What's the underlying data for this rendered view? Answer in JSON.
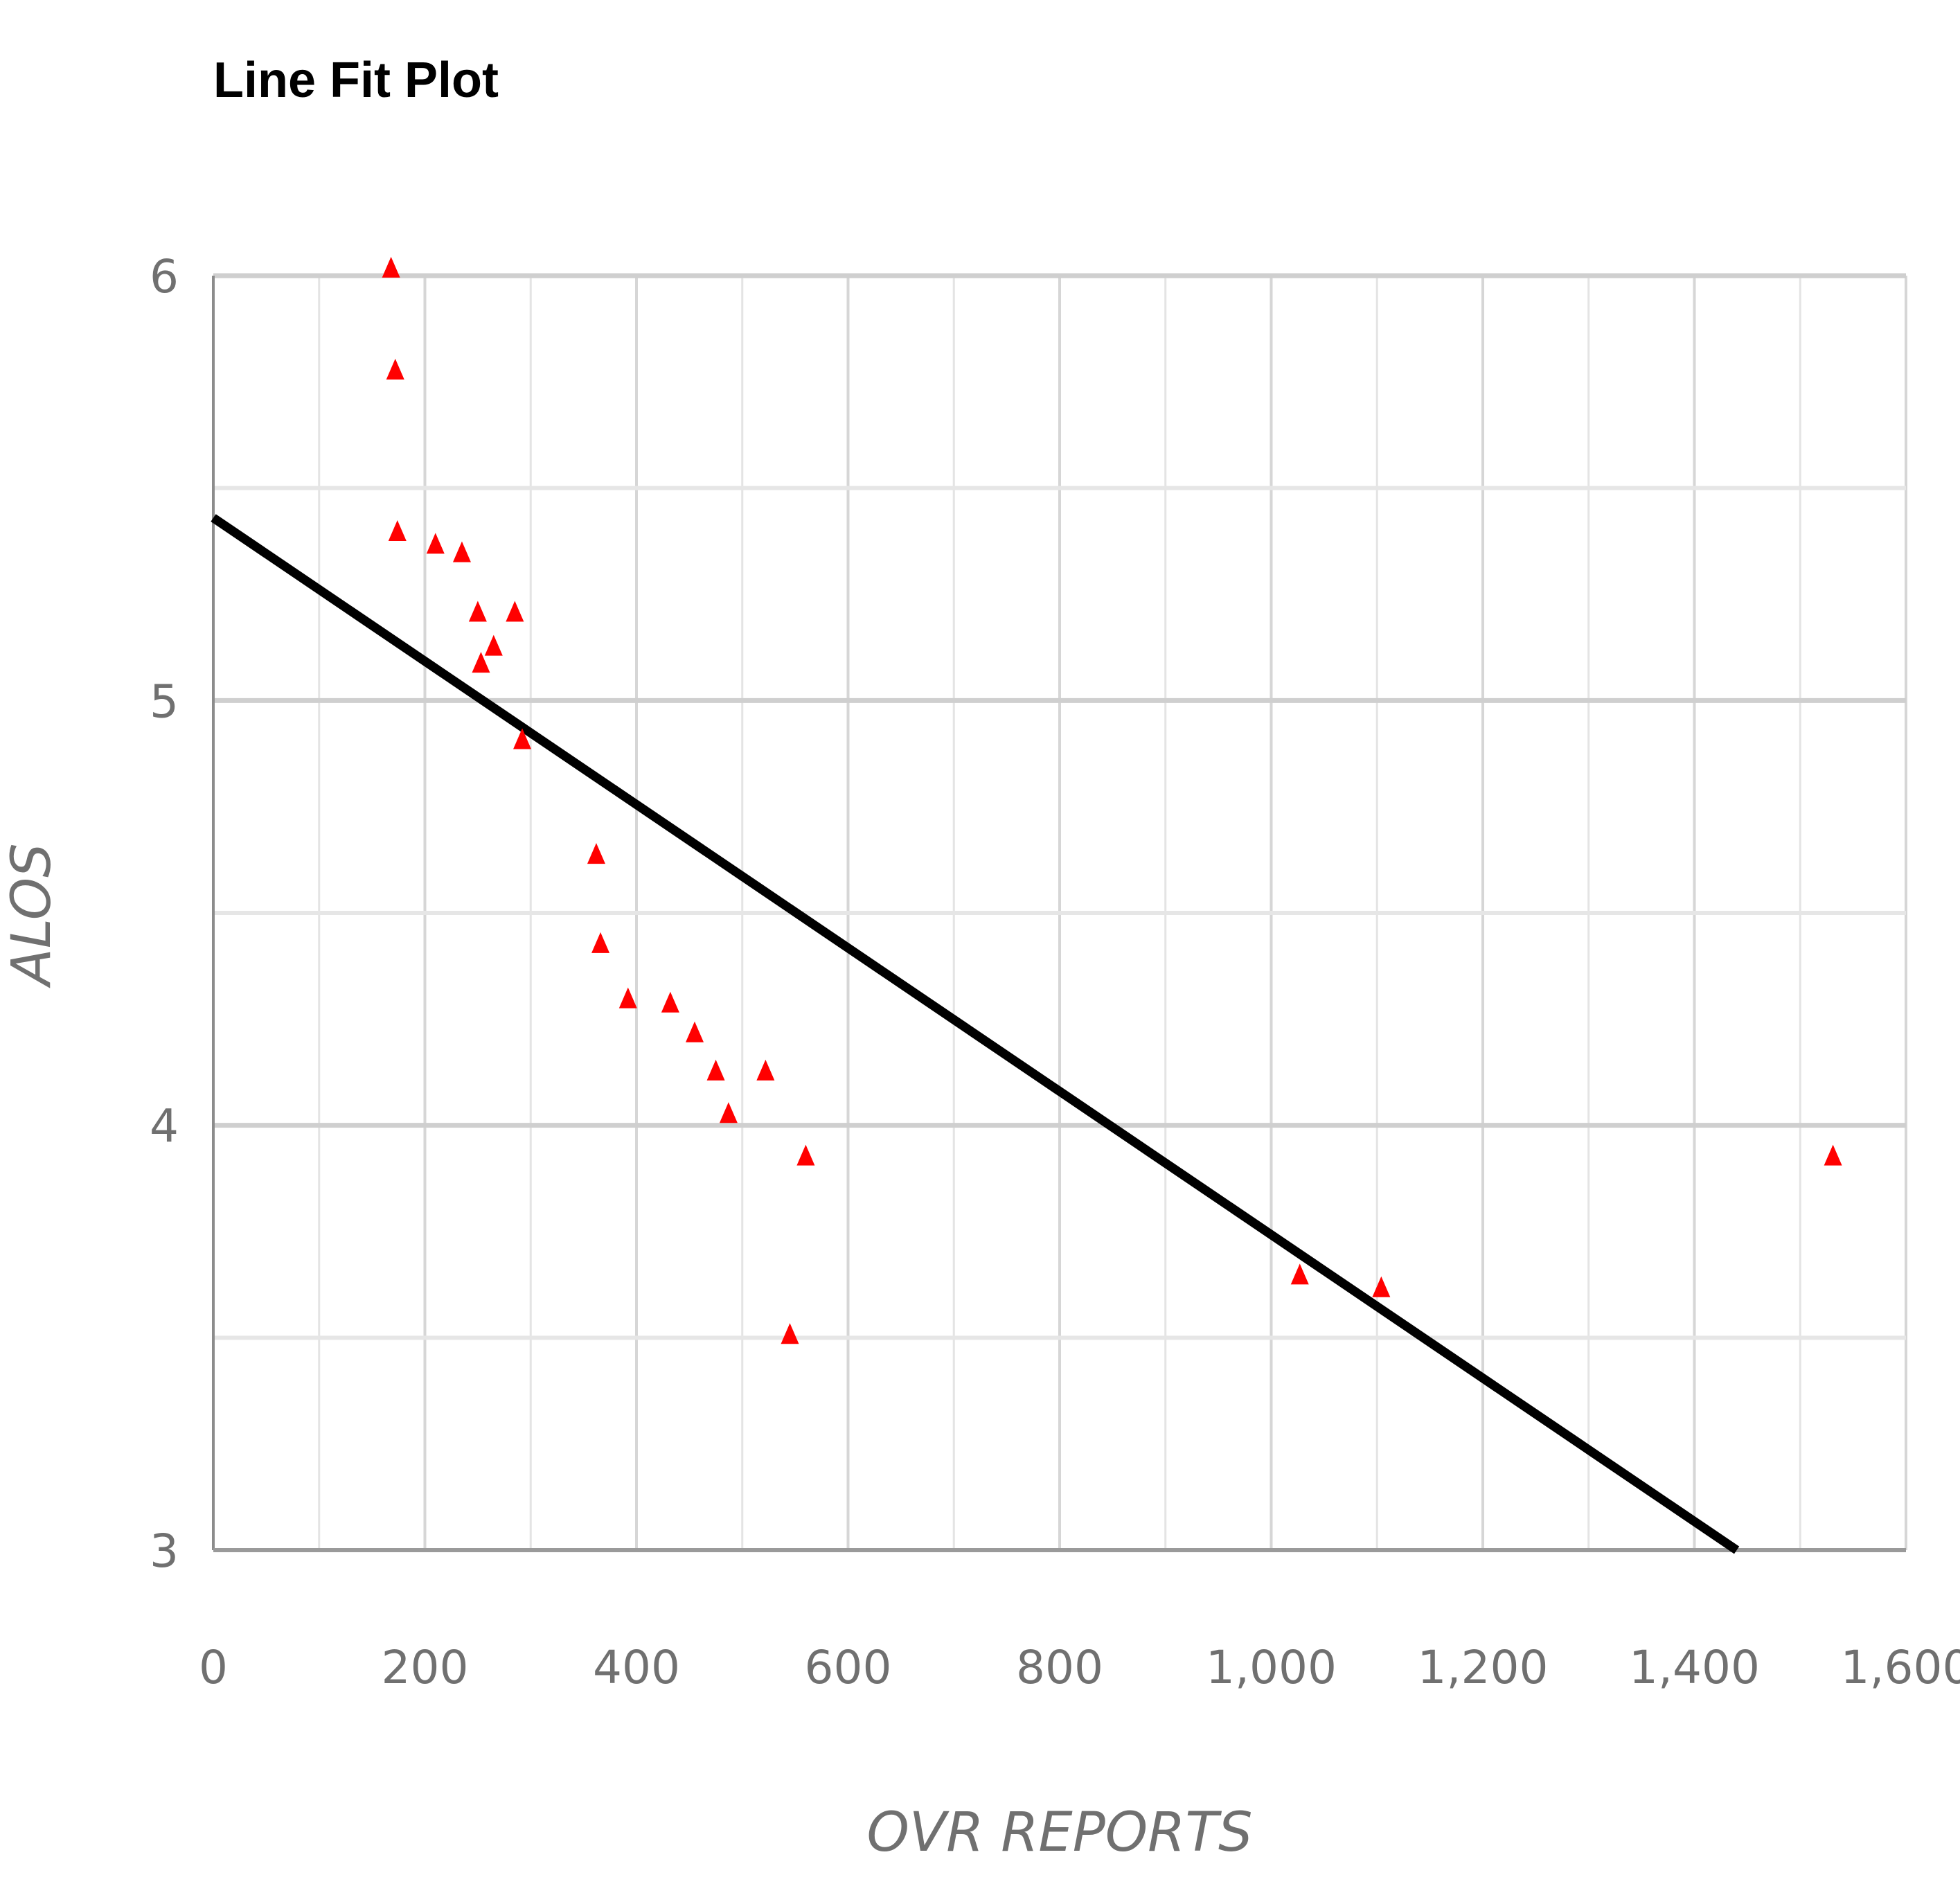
{
  "chart_data": {
    "type": "scatter",
    "title": "Line Fit Plot",
    "xlabel": "OVR REPORTS",
    "ylabel": "ALOS",
    "xlim": [
      0,
      1600
    ],
    "ylim": [
      3,
      6
    ],
    "x_ticks": [
      0,
      200,
      400,
      600,
      800,
      1000,
      1200,
      1400,
      1600
    ],
    "x_tick_labels": [
      "0",
      "200",
      "400",
      "600",
      "800",
      "1,000",
      "1,200",
      "1,400",
      "1,600"
    ],
    "y_ticks": [
      3,
      4,
      5,
      6
    ],
    "y_tick_labels": [
      "3",
      "4",
      "5",
      "6"
    ],
    "grid": true,
    "legend": "none",
    "series": [
      {
        "marker": "triangle",
        "color": "#ff0000",
        "x": [
          168,
          172,
          174,
          210,
          235,
          250,
          253,
          265,
          285,
          292,
          362,
          366,
          392,
          432,
          455,
          475,
          487,
          522,
          545,
          560,
          1027,
          1104,
          1531
        ],
        "y": [
          6.02,
          5.78,
          5.4,
          5.37,
          5.35,
          5.21,
          5.09,
          5.13,
          5.21,
          4.91,
          4.64,
          4.43,
          4.3,
          4.29,
          4.22,
          4.13,
          4.03,
          4.13,
          3.51,
          3.93,
          3.65,
          3.62,
          3.93
        ]
      }
    ],
    "fit_line": {
      "color": "#000000",
      "x": [
        0,
        1440
      ],
      "y": [
        5.43,
        3.0
      ]
    }
  }
}
